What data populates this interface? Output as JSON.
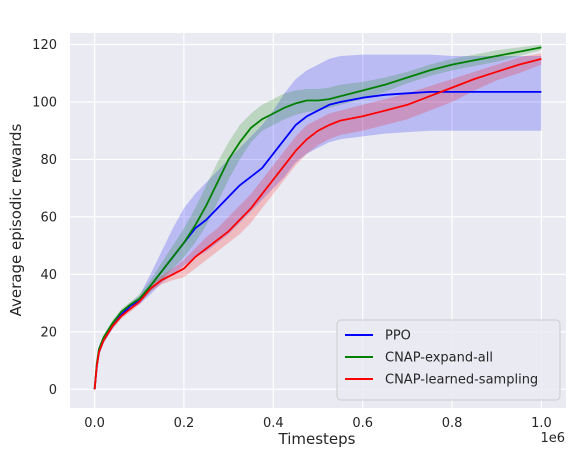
{
  "chart_data": {
    "type": "line",
    "title": "",
    "xlabel": "Timesteps",
    "ylabel": "Average episodic rewards",
    "x_offset_label": "1e6",
    "xlim": [
      -0.055,
      1.055
    ],
    "ylim": [
      -6.5,
      124
    ],
    "x_ticks": [
      0.0,
      0.2,
      0.4,
      0.6,
      0.8,
      1.0
    ],
    "x_tick_labels": [
      "0.0",
      "0.2",
      "0.4",
      "0.6",
      "0.8",
      "1.0"
    ],
    "y_ticks": [
      0,
      20,
      40,
      60,
      80,
      100,
      120
    ],
    "y_tick_labels": [
      "0",
      "20",
      "40",
      "60",
      "80",
      "100",
      "120"
    ],
    "grid": true,
    "legend_position": "lower-right",
    "style": {
      "background": "#eaeaf2",
      "grid_color": "#ffffff",
      "band_opacity": 0.2
    },
    "series": [
      {
        "name": "PPO",
        "color": "#0000ff",
        "x": [
          0.0,
          0.005,
          0.01,
          0.02,
          0.04,
          0.06,
          0.08,
          0.1,
          0.125,
          0.15,
          0.175,
          0.2,
          0.225,
          0.25,
          0.275,
          0.3,
          0.325,
          0.35,
          0.375,
          0.4,
          0.425,
          0.45,
          0.475,
          0.5,
          0.525,
          0.55,
          0.6,
          0.65,
          0.7,
          0.75,
          0.8,
          0.85,
          0.9,
          0.95,
          1.0
        ],
        "y": [
          0,
          8,
          13,
          17,
          22,
          26,
          29,
          31,
          36,
          41,
          46,
          51,
          56,
          59,
          63,
          67,
          71,
          74,
          77,
          82,
          87,
          92,
          95,
          97,
          99,
          100,
          101.5,
          102.5,
          103,
          103.5,
          103.5,
          103.5,
          103.5,
          103.5,
          103.5
        ],
        "upper": [
          0.5,
          9,
          14,
          18,
          23,
          27,
          30,
          32.5,
          40,
          48,
          56,
          63,
          68,
          72,
          76,
          80,
          84,
          88,
          92,
          97,
          103,
          108,
          111,
          113,
          115,
          116,
          116.5,
          116.5,
          116.5,
          116.5,
          116,
          116,
          116,
          116,
          116
        ],
        "lower": [
          -0.5,
          7,
          12,
          16,
          21,
          25,
          28,
          29.5,
          33,
          37,
          40,
          43,
          46,
          48,
          51,
          54,
          58,
          62,
          66,
          70,
          74,
          79,
          82,
          84,
          86,
          87,
          88,
          89,
          89.5,
          90,
          90,
          90,
          90,
          90,
          90
        ]
      },
      {
        "name": "CNAP-expand-all",
        "color": "#008000",
        "x": [
          0.0,
          0.005,
          0.01,
          0.02,
          0.04,
          0.06,
          0.08,
          0.1,
          0.125,
          0.15,
          0.175,
          0.2,
          0.225,
          0.25,
          0.275,
          0.3,
          0.325,
          0.35,
          0.375,
          0.4,
          0.425,
          0.45,
          0.475,
          0.5,
          0.525,
          0.55,
          0.6,
          0.65,
          0.7,
          0.75,
          0.8,
          0.85,
          0.9,
          0.95,
          1.0
        ],
        "y": [
          0,
          9,
          14,
          18,
          23,
          27,
          29.5,
          31.5,
          36,
          41,
          46,
          51,
          57,
          64,
          72,
          80,
          86,
          91,
          94,
          96,
          98,
          99.5,
          100.5,
          100.5,
          101,
          102,
          104,
          106,
          108.5,
          111,
          113,
          114.5,
          116,
          117.5,
          119
        ],
        "upper": [
          0.5,
          10,
          15,
          19,
          24,
          28,
          30.5,
          33,
          38,
          44,
          50,
          56,
          63,
          71,
          79,
          86,
          92,
          96,
          99,
          101,
          103,
          104,
          104.5,
          104.5,
          105,
          106,
          107,
          108.5,
          110.5,
          113,
          115,
          116.5,
          118,
          119,
          120
        ],
        "lower": [
          -0.5,
          8,
          13,
          17,
          22,
          26,
          28.5,
          30,
          34,
          38,
          42,
          46,
          51,
          57,
          65,
          73,
          80,
          86,
          90,
          92,
          94,
          95.5,
          96.5,
          97,
          98,
          99,
          101,
          103.5,
          106.5,
          109,
          111,
          112.5,
          114,
          116,
          118
        ]
      },
      {
        "name": "CNAP-learned-sampling",
        "color": "#ff0000",
        "x": [
          0.0,
          0.005,
          0.01,
          0.02,
          0.04,
          0.06,
          0.08,
          0.1,
          0.125,
          0.15,
          0.175,
          0.2,
          0.225,
          0.25,
          0.275,
          0.3,
          0.325,
          0.35,
          0.375,
          0.4,
          0.425,
          0.45,
          0.475,
          0.5,
          0.525,
          0.55,
          0.6,
          0.65,
          0.7,
          0.75,
          0.8,
          0.85,
          0.9,
          0.95,
          1.0
        ],
        "y": [
          0,
          8,
          13,
          17,
          22,
          25.5,
          28,
          30.5,
          35,
          38,
          40,
          42,
          46,
          49,
          52,
          55,
          59,
          63,
          68,
          73,
          78,
          83,
          87,
          90,
          92,
          93.5,
          95,
          97,
          99,
          102,
          105,
          108,
          110.5,
          113,
          115
        ],
        "upper": [
          0.5,
          9,
          14,
          18,
          23,
          26.5,
          29,
          31.5,
          36,
          39.5,
          42,
          45,
          49,
          53,
          56,
          60,
          64,
          68,
          73,
          78,
          83,
          88,
          92,
          94,
          96,
          97,
          99,
          101,
          103,
          105.5,
          108,
          110.5,
          113,
          115.5,
          117
        ],
        "lower": [
          -0.5,
          7,
          12,
          16,
          21,
          24.5,
          27,
          29.5,
          34,
          36.5,
          38,
          39,
          42,
          45,
          48,
          51,
          54,
          58,
          63,
          68,
          73,
          78,
          82,
          85,
          87,
          88.5,
          90,
          92,
          94,
          97,
          100,
          104,
          107.5,
          110,
          113
        ]
      }
    ]
  }
}
